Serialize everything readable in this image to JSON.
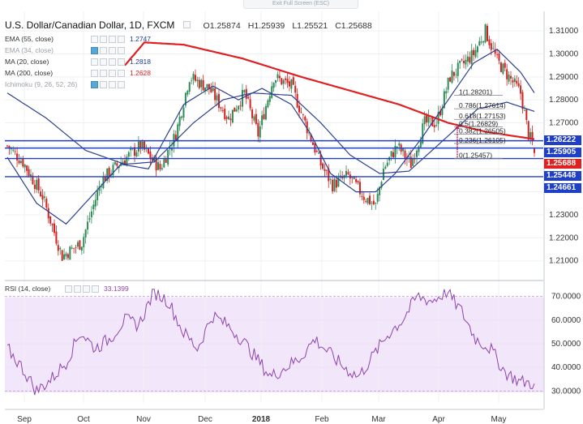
{
  "ui": {
    "exit_fullscreen": "Exit Full Screen (ESC)"
  },
  "header": {
    "symbol": "U.S. Dollar/Canadian Dollar, 1D, FXCM",
    "open": "O1.25874",
    "high": "H1.25939",
    "low": "L1.25521",
    "close": "C1.25688"
  },
  "indicators": [
    {
      "label": "EMA (55, close)",
      "value": "1.2747",
      "color": "#1f3b8f",
      "visible": true
    },
    {
      "label": "EMA (34, close)",
      "value": "",
      "color": "#9aa0a6",
      "visible": false
    },
    {
      "label": "MA (20, close)",
      "value": "1.2818",
      "color": "#1f3b8f",
      "visible": true
    },
    {
      "label": "MA (200, close)",
      "value": "1.2628",
      "color": "#e02020",
      "visible": true
    },
    {
      "label": "Ichimoku (9, 26, 52, 26)",
      "value": "",
      "color": "#9aa0a6",
      "visible": false
    }
  ],
  "rsi": {
    "label": "RSI (14, close)",
    "value": "33.1399",
    "ticks": [
      "70.0000",
      "60.0000",
      "50.0000",
      "40.0000",
      "30.0000"
    ]
  },
  "price_axis": {
    "ticks": [
      "1.31000",
      "1.30000",
      "1.29000",
      "1.28000",
      "1.27000",
      "1.23000",
      "1.22000",
      "1.21000"
    ],
    "boxes": [
      {
        "label": "1.26222",
        "color": "#1f3fc8"
      },
      {
        "label": "1.25905",
        "color": "#1f3fc8"
      },
      {
        "label": "1.25688",
        "color": "#e02020"
      },
      {
        "label": "1.25448",
        "color": "#1f3fc8"
      },
      {
        "label": "1.24661",
        "color": "#1f3fc8"
      }
    ]
  },
  "fib_labels": [
    "1(1.28201)",
    "0.786(1.27614)",
    "0.618(1.27153)",
    "0.5(1.26829)",
    "0.382(1.26505)",
    "0.236(1.26105)",
    "0(1.25457)"
  ],
  "x_axis": {
    "labels": [
      "Sep",
      "Oct",
      "Nov",
      "Dec",
      "2018",
      "Feb",
      "Mar",
      "Apr",
      "May"
    ]
  },
  "colors": {
    "up": "#2e8b57",
    "down": "#d42020",
    "ma200": "#e02020",
    "ema": "#2b3f8f",
    "hline": "#1f3fc8",
    "rsi_line": "#8e44ad",
    "rsi_band": "#f2e6fa"
  },
  "chart_data": {
    "type": "candlestick",
    "title": "U.S. Dollar/Canadian Dollar, 1D, FXCM",
    "ylim": [
      1.2025,
      1.3185
    ],
    "last_candle": {
      "open": 1.25874,
      "high": 1.25939,
      "low": 1.25521,
      "close": 1.25688
    },
    "horizontal_levels": [
      1.26222,
      1.25905,
      1.25448,
      1.24661
    ],
    "waypoints": [
      [
        1.26,
        0
      ],
      [
        1.253,
        8
      ],
      [
        1.238,
        18
      ],
      [
        1.212,
        28
      ],
      [
        1.218,
        38
      ],
      [
        1.245,
        48
      ],
      [
        1.253,
        58
      ],
      [
        1.26,
        68
      ],
      [
        1.25,
        78
      ],
      [
        1.265,
        86
      ],
      [
        1.29,
        93
      ],
      [
        1.285,
        103
      ],
      [
        1.272,
        113
      ],
      [
        1.283,
        121
      ],
      [
        1.265,
        128
      ],
      [
        1.29,
        136
      ],
      [
        1.286,
        145
      ],
      [
        1.27,
        152
      ],
      [
        1.252,
        160
      ],
      [
        1.243,
        166
      ],
      [
        1.247,
        174
      ],
      [
        1.238,
        182
      ],
      [
        1.234,
        188
      ],
      [
        1.25,
        192
      ],
      [
        1.26,
        199
      ],
      [
        1.252,
        206
      ],
      [
        1.27,
        213
      ],
      [
        1.27,
        219
      ],
      [
        1.29,
        226
      ],
      [
        1.3,
        238
      ],
      [
        1.31,
        244
      ],
      [
        1.297,
        250
      ],
      [
        1.29,
        256
      ],
      [
        1.283,
        262
      ],
      [
        1.265,
        266
      ],
      [
        1.257,
        270
      ]
    ],
    "ma200": [
      [
        1.295,
        60
      ],
      [
        1.305,
        70
      ],
      [
        1.304,
        90
      ],
      [
        1.298,
        120
      ],
      [
        1.29,
        150
      ],
      [
        1.284,
        175
      ],
      [
        1.278,
        200
      ],
      [
        1.27,
        225
      ],
      [
        1.266,
        245
      ],
      [
        1.2628,
        270
      ]
    ],
    "ema55": [
      [
        1.283,
        0
      ],
      [
        1.272,
        20
      ],
      [
        1.258,
        40
      ],
      [
        1.252,
        60
      ],
      [
        1.253,
        75
      ],
      [
        1.27,
        95
      ],
      [
        1.28,
        110
      ],
      [
        1.283,
        125
      ],
      [
        1.282,
        145
      ],
      [
        1.27,
        160
      ],
      [
        1.256,
        175
      ],
      [
        1.248,
        190
      ],
      [
        1.249,
        205
      ],
      [
        1.262,
        222
      ],
      [
        1.276,
        240
      ],
      [
        1.279,
        255
      ],
      [
        1.2747,
        270
      ]
    ],
    "ma20": [
      [
        1.255,
        0
      ],
      [
        1.235,
        15
      ],
      [
        1.226,
        30
      ],
      [
        1.24,
        45
      ],
      [
        1.252,
        58
      ],
      [
        1.25,
        72
      ],
      [
        1.278,
        90
      ],
      [
        1.286,
        105
      ],
      [
        1.28,
        118
      ],
      [
        1.285,
        130
      ],
      [
        1.278,
        145
      ],
      [
        1.265,
        155
      ],
      [
        1.248,
        165
      ],
      [
        1.24,
        178
      ],
      [
        1.24,
        188
      ],
      [
        1.248,
        198
      ],
      [
        1.264,
        212
      ],
      [
        1.28,
        225
      ],
      [
        1.296,
        238
      ],
      [
        1.302,
        250
      ],
      [
        1.292,
        262
      ],
      [
        1.2818,
        270
      ]
    ],
    "fib_levels": [
      {
        "ratio": 1,
        "price": 1.28201
      },
      {
        "ratio": 0.786,
        "price": 1.27614
      },
      {
        "ratio": 0.618,
        "price": 1.27153
      },
      {
        "ratio": 0.5,
        "price": 1.26829
      },
      {
        "ratio": 0.382,
        "price": 1.26505
      },
      {
        "ratio": 0.236,
        "price": 1.26105
      },
      {
        "ratio": 0,
        "price": 1.25457
      }
    ],
    "rsi_series": [
      48,
      40,
      30,
      35,
      42,
      55,
      48,
      52,
      60,
      58,
      72,
      68,
      55,
      48,
      62,
      58,
      52,
      44,
      36,
      40,
      44,
      52,
      46,
      40,
      36,
      45,
      54,
      60,
      70,
      68,
      72,
      64,
      52,
      48,
      38,
      34,
      33.14
    ],
    "rsi_ylim": [
      25,
      75
    ]
  }
}
